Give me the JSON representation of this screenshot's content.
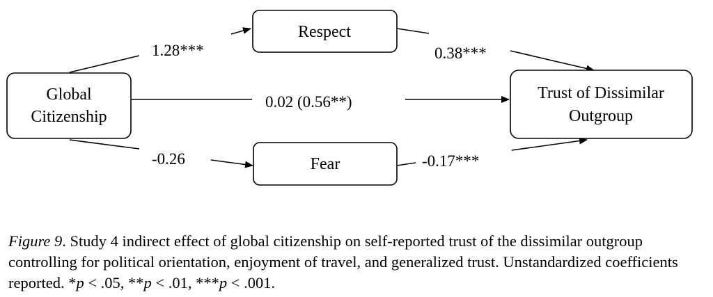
{
  "nodes": {
    "global": {
      "line1": "Global",
      "line2": "Citizenship"
    },
    "respect": {
      "label": "Respect"
    },
    "fear": {
      "label": "Fear"
    },
    "trust": {
      "line1": "Trust of Dissimilar",
      "line2": "Outgroup"
    }
  },
  "paths": {
    "global_respect": "1.28***",
    "respect_trust": "0.38***",
    "global_trust": "0.02 (0.56**)",
    "global_fear": "-0.26",
    "fear_trust": "-0.17***"
  },
  "caption": {
    "figure_label": "Figure 9",
    "text": ". Study 4 indirect effect of global citizenship on self-reported trust of the dissimilar outgroup controlling for political orientation, enjoyment of travel, and generalized trust. Unstandardized coefficients reported. *",
    "p1": "p",
    "t1": " < .05, **",
    "p2": "p",
    "t2": " < .01, ***",
    "p3": "p",
    "t3": " < .001."
  }
}
